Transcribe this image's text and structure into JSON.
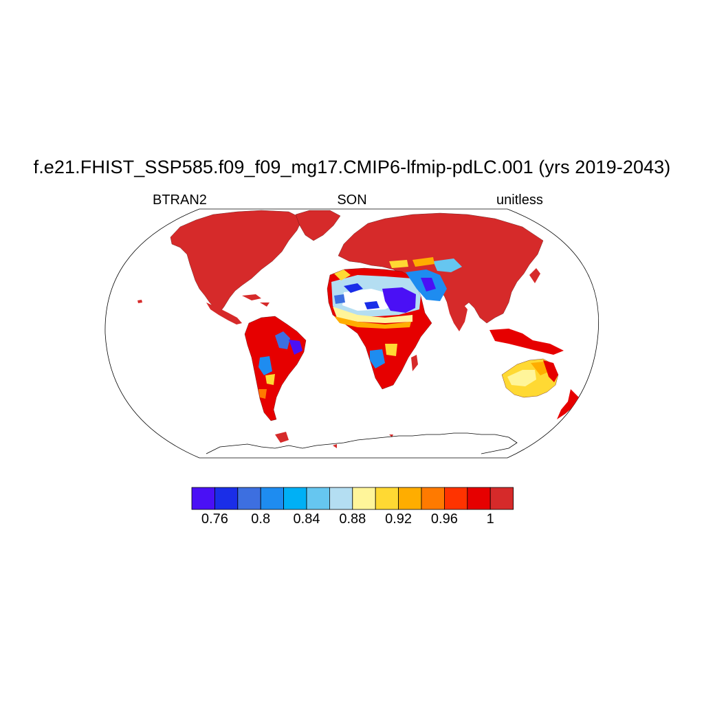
{
  "title": "f.e21.FHIST_SSP585.f09_f09_mg17.CMIP6-lfmip-pdLC.001 (yrs 2019-2043)",
  "subtitle_left": "BTRAN2",
  "subtitle_center": "SON",
  "subtitle_right": "unitless",
  "colorbar": {
    "colors": [
      "#4a10f5",
      "#1a2ee8",
      "#3d6fe0",
      "#1e8cf0",
      "#00b0f5",
      "#66c6f0",
      "#b4def2",
      "#fff59a",
      "#ffd933",
      "#ffad00",
      "#ff7a00",
      "#ff3300",
      "#e60000",
      "#d62a2a"
    ],
    "labels": [
      "0.76",
      "0.8",
      "0.84",
      "0.88",
      "0.92",
      "0.96",
      "1"
    ]
  }
}
